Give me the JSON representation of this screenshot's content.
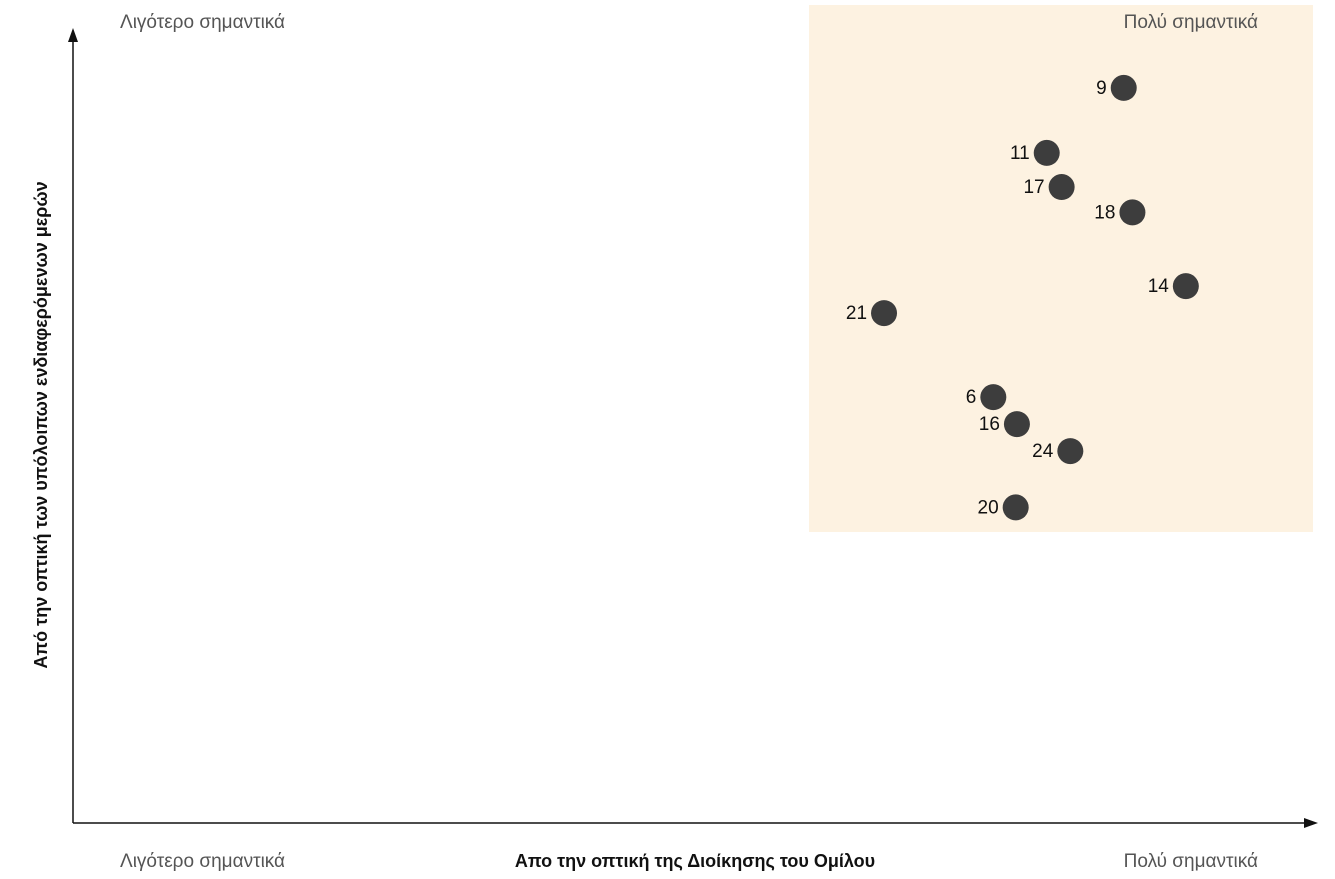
{
  "chart_data": {
    "type": "scatter",
    "x_label": "Απο την οπτική της Διοίκησης του Ομίλου",
    "y_label": "Από την οπτική των υπόλοιπων ενδιαφερόμενων μερών",
    "corner_labels": {
      "top_left": "Λιγότερο σημαντικά",
      "top_right": "Πολύ σημαντικά",
      "bottom_left": "Λιγότερο σημαντικά",
      "bottom_right": "Πολύ σημαντικά"
    },
    "xlim": [
      0,
      100
    ],
    "ylim": [
      0,
      100
    ],
    "color": "#3d3d3d",
    "point_labels": [
      "9",
      "11",
      "17",
      "18",
      "14",
      "21",
      "6",
      "16",
      "24",
      "20"
    ],
    "x": [
      84.6,
      78.4,
      79.6,
      85.3,
      89.6,
      65.3,
      74.1,
      76.0,
      80.3,
      75.9
    ],
    "values": [
      92.7,
      84.5,
      80.2,
      77.0,
      67.7,
      64.3,
      53.7,
      50.3,
      46.9,
      39.8
    ]
  }
}
